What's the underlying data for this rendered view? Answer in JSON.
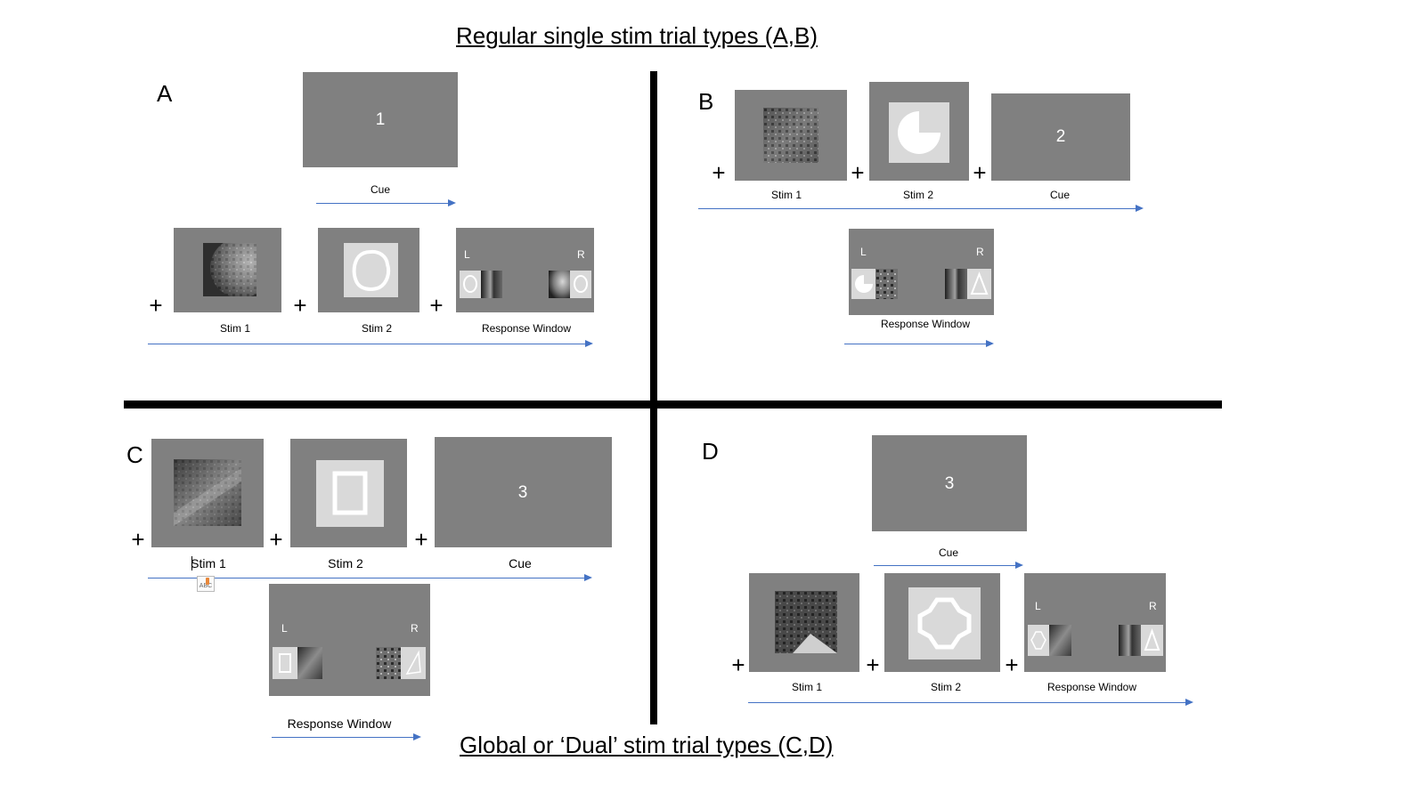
{
  "title_top": "Regular single stim trial types (A,B)",
  "title_bottom": "Global or ‘Dual’ stim trial types (C,D)",
  "plus": "+",
  "panels": {
    "A": {
      "letter": "A",
      "cue_number": "1",
      "cue_label": "Cue",
      "stim1_label": "Stim 1",
      "stim2_label": "Stim 2",
      "response_label": "Response Window",
      "left": "L",
      "right": "R"
    },
    "B": {
      "letter": "B",
      "cue_number": "2",
      "cue_label": "Cue",
      "stim1_label": "Stim 1",
      "stim2_label": "Stim 2",
      "response_label": "Response Window",
      "left": "L",
      "right": "R"
    },
    "C": {
      "letter": "C",
      "cue_number": "3",
      "cue_label": "Cue",
      "stim1_label": "Stim 1",
      "stim2_label": "Stim 2",
      "response_label": "Response Window",
      "left": "L",
      "right": "R"
    },
    "D": {
      "letter": "D",
      "cue_number": "3",
      "cue_label": "Cue",
      "stim1_label": "Stim 1",
      "stim2_label": "Stim 2",
      "response_label": "Response Window",
      "left": "L",
      "right": "R"
    }
  },
  "colors": {
    "screen_gray": "#808080",
    "shape_bg": "#d9d9d9",
    "arrow_blue": "#4472c4",
    "divider": "#000000"
  },
  "stimuli": {
    "A": {
      "stim1": "fractal-sphere-image",
      "stim2": "blob-outline-shape"
    },
    "B": {
      "stim1": "fractal-cube-image",
      "stim2": "pacman-shape"
    },
    "C": {
      "stim1": "fractal-corridor-image",
      "stim2": "rectangle-outline-shape"
    },
    "D": {
      "stim1": "fractal-tower-image",
      "stim2": "cross-outline-shape"
    }
  }
}
